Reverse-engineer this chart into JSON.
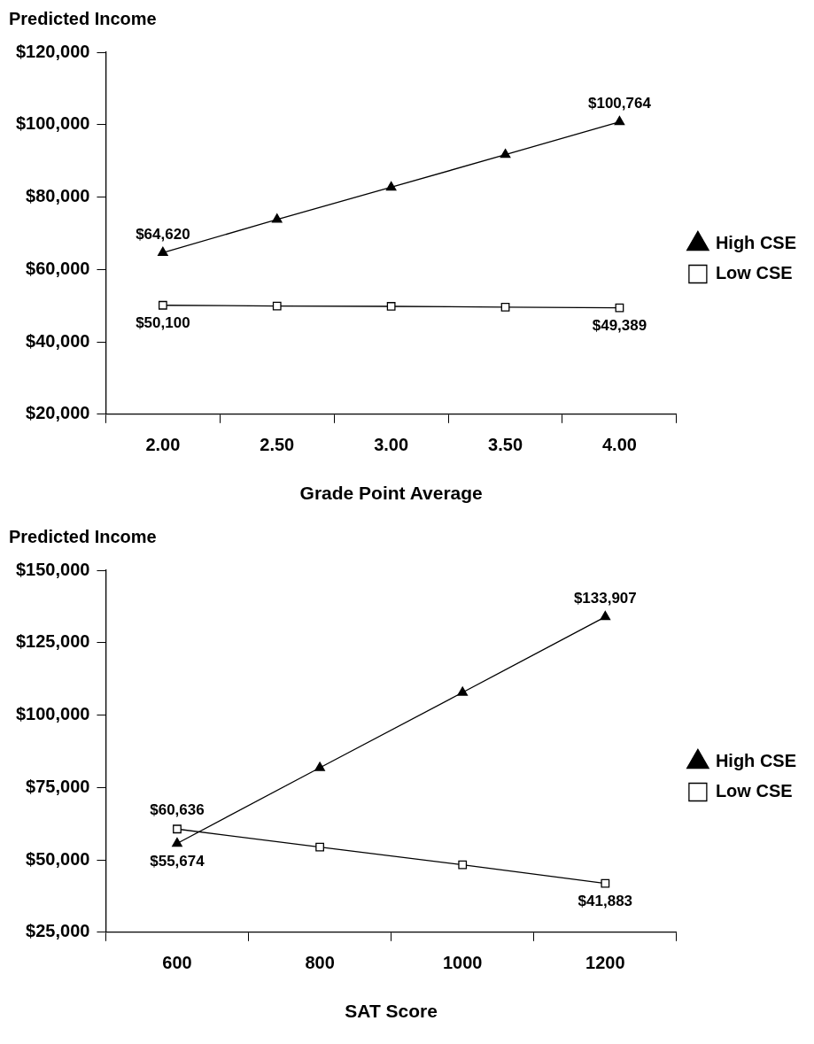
{
  "chart_data": [
    {
      "type": "line",
      "title": "Predicted Income",
      "xlabel": "Grade Point Average",
      "categories": [
        "2.00",
        "2.50",
        "3.00",
        "3.50",
        "4.00"
      ],
      "ylim": [
        20000,
        120000
      ],
      "yticks": [
        {
          "value": 20000,
          "label": "$20,000"
        },
        {
          "value": 40000,
          "label": "$40,000"
        },
        {
          "value": 60000,
          "label": "$60,000"
        },
        {
          "value": 80000,
          "label": "$80,000"
        },
        {
          "value": 100000,
          "label": "$100,000"
        },
        {
          "value": 120000,
          "label": "$120,000"
        }
      ],
      "grid": false,
      "legend": "right",
      "line_style": "solid",
      "series": [
        {
          "name": "High CSE",
          "color": "#000000",
          "marker": "triangle",
          "values": [
            64620,
            73800,
            82700,
            91700,
            100764
          ],
          "value_labels": [
            "$64,620",
            null,
            null,
            null,
            "$100,764"
          ]
        },
        {
          "name": "Low CSE",
          "color": "#000000",
          "marker": "square",
          "values": [
            50100,
            49900,
            49800,
            49600,
            49389
          ],
          "value_labels": [
            "$50,100",
            null,
            null,
            null,
            "$49,389"
          ]
        }
      ]
    },
    {
      "type": "line",
      "title": "Predicted Income",
      "xlabel": "SAT Score",
      "categories": [
        "600",
        "800",
        "1000",
        "1200"
      ],
      "ylim": [
        25000,
        150000
      ],
      "yticks": [
        {
          "value": 25000,
          "label": "$25,000"
        },
        {
          "value": 50000,
          "label": "$50,000"
        },
        {
          "value": 75000,
          "label": "$75,000"
        },
        {
          "value": 100000,
          "label": "$100,000"
        },
        {
          "value": 125000,
          "label": "$125,000"
        },
        {
          "value": 150000,
          "label": "$150,000"
        }
      ],
      "grid": false,
      "legend": "right",
      "line_style": "solid",
      "series": [
        {
          "name": "High CSE",
          "color": "#000000",
          "marker": "triangle",
          "values": [
            55674,
            81800,
            107800,
            133907
          ],
          "value_labels": [
            "$55,674",
            null,
            null,
            "$133,907"
          ]
        },
        {
          "name": "Low CSE",
          "color": "#000000",
          "marker": "square",
          "values": [
            60636,
            54400,
            48300,
            41883
          ],
          "value_labels": [
            "$60,636",
            null,
            null,
            "$41,883"
          ]
        }
      ]
    }
  ]
}
